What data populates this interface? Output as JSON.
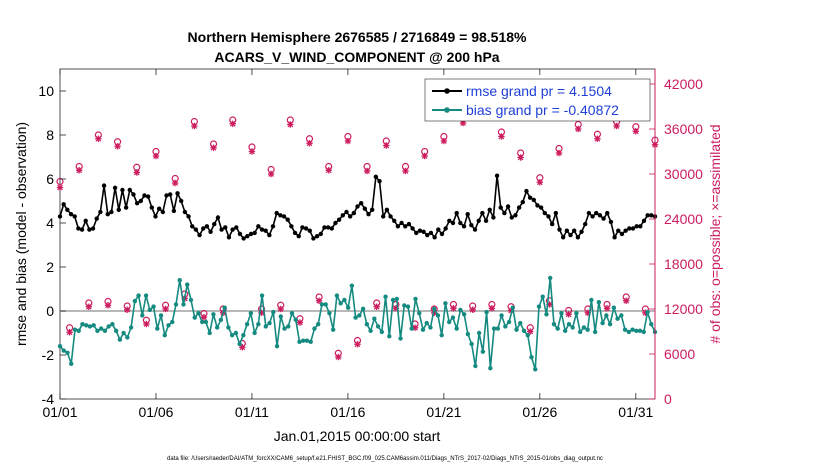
{
  "chart_data": {
    "type": "line",
    "title": "Northern Hemisphere 2676585 / 2716849 = 98.518%",
    "subtitle": "ACARS_V_WIND_COMPONENT @ 200 hPa",
    "xlabel": "Jan.01,2015 00:00:00 start",
    "ylabel": "rmse and bias (model - observation)",
    "ylabel_right": "# of obs: o=possible; ×=assimilated",
    "footer": "data file: /Users/raeder/DAI/ATM_forcXX/CAM6_setup/f.e21.FHIST_BGC.f09_025.CAM6assim.011/Diags_NTrS_2017-02/Diags_NTrS_2015-01/obs_diag_output.nc",
    "xlim": [
      0,
      31
    ],
    "ylim": [
      -4,
      11
    ],
    "ylim_right": [
      0,
      44000
    ],
    "x_tick_values": [
      0,
      5,
      10,
      15,
      20,
      25,
      30
    ],
    "x_tick_labels": [
      "01/01",
      "01/06",
      "01/11",
      "01/16",
      "01/21",
      "01/26",
      "01/31"
    ],
    "y_tick_values": [
      -4,
      -2,
      0,
      2,
      4,
      6,
      8,
      10
    ],
    "y_tick_labels": [
      "-4",
      "-2",
      "0",
      "2",
      "4",
      "6",
      "8",
      "10"
    ],
    "y_right_tick_values": [
      0,
      6000,
      12000,
      18000,
      24000,
      30000,
      36000,
      42000
    ],
    "y_right_tick_labels": [
      "0",
      "6000",
      "12000",
      "18000",
      "24000",
      "30000",
      "36000",
      "42000"
    ],
    "zero_line": 0,
    "legend_position": "top-right",
    "colors": {
      "rmse": "#000000",
      "bias": "#158a80",
      "obs": "#cc1d5e",
      "legend_text": "#1f3fd6",
      "zero_line": "#a0a0a0"
    },
    "series": [
      {
        "name": "rmse grand pr = 4.1504",
        "axis": "left",
        "marker": "dot",
        "values": [
          4.3,
          4.85,
          4.6,
          4.4,
          4.3,
          3.75,
          3.7,
          4.1,
          3.7,
          3.75,
          4.2,
          4.5,
          5.7,
          4.4,
          4.5,
          5.6,
          4.6,
          5.5,
          4.7,
          5.5,
          5.3,
          4.9,
          5.0,
          5.25,
          5.2,
          4.7,
          4.3,
          4.65,
          4.5,
          5.25,
          5.3,
          4.55,
          5.35,
          5.0,
          4.5,
          4.3,
          3.85,
          3.7,
          3.45,
          3.75,
          3.85,
          3.6,
          3.95,
          4.25,
          3.7,
          3.8,
          3.35,
          3.7,
          3.8,
          3.5,
          3.3,
          3.4,
          3.5,
          3.55,
          3.85,
          3.7,
          3.65,
          3.45,
          3.85,
          4.45,
          4.35,
          4.3,
          4.15,
          3.85,
          3.55,
          3.4,
          3.8,
          3.75,
          3.65,
          3.3,
          3.4,
          3.5,
          3.8,
          3.8,
          3.75,
          4.0,
          4.15,
          4.35,
          4.5,
          4.3,
          4.45,
          4.75,
          4.9,
          4.65,
          4.4,
          4.6,
          6.1,
          5.9,
          4.3,
          4.6,
          4.3,
          4.1,
          3.85,
          4.0,
          3.85,
          3.95,
          3.75,
          3.55,
          3.65,
          3.6,
          3.45,
          3.55,
          3.35,
          3.7,
          3.5,
          3.75,
          4.1,
          4.0,
          4.45,
          4.0,
          3.85,
          4.4,
          3.9,
          3.7,
          4.1,
          4.45,
          4.1,
          4.6,
          4.25,
          6.15,
          4.7,
          4.45,
          4.75,
          4.25,
          4.35,
          4.7,
          4.95,
          5.45,
          5.15,
          5.05,
          4.8,
          4.7,
          4.45,
          4.3,
          3.95,
          4.45,
          3.7,
          3.35,
          3.65,
          3.45,
          3.65,
          3.35,
          3.6,
          3.95,
          4.45,
          4.3,
          4.45,
          4.35,
          4.2,
          4.45,
          4.05,
          3.35,
          3.65,
          3.5,
          3.65,
          3.75,
          3.75,
          3.85,
          3.85,
          4.1,
          4.35,
          4.35,
          4.3
        ]
      },
      {
        "name": "bias grand pr = -0.40872",
        "axis": "left",
        "marker": "dot",
        "values": [
          -1.6,
          -1.8,
          -1.9,
          -2.4,
          -0.85,
          -0.9,
          -0.6,
          -0.65,
          -0.7,
          -0.65,
          -0.9,
          -0.8,
          -0.9,
          -0.7,
          -0.6,
          -0.9,
          -1.3,
          -1.0,
          -1.2,
          -0.75,
          0.45,
          0.7,
          -0.2,
          0.7,
          0.05,
          0.2,
          -0.8,
          -0.2,
          -1.1,
          -0.65,
          -0.5,
          0.3,
          1.4,
          0.3,
          1.2,
          0.5,
          -0.3,
          -0.1,
          -0.5,
          -0.5,
          -1.0,
          -0.15,
          -0.75,
          -0.4,
          0.15,
          -0.75,
          -1.1,
          -1.0,
          -1.5,
          -1.1,
          -0.6,
          -0.1,
          -1.0,
          -0.6,
          0.7,
          -0.7,
          -0.55,
          -0.05,
          -1.6,
          -0.25,
          -0.8,
          -0.7,
          -0.1,
          -0.4,
          -1.4,
          -1.35,
          -1.35,
          -1.4,
          -0.8,
          -0.6,
          0.3,
          0.3,
          -0.1,
          -0.85,
          0.7,
          0.35,
          0.5,
          0.15,
          1.15,
          -0.3,
          -0.2,
          0.1,
          -0.6,
          -0.9,
          -0.35,
          -0.7,
          -0.95,
          0.65,
          -1.15,
          0.5,
          0.55,
          -1.25,
          0.25,
          0.2,
          -0.8,
          0.55,
          -0.1,
          -0.85,
          -0.55,
          -0.75,
          0.1,
          -0.2,
          -1.1,
          0.35,
          -0.5,
          -0.3,
          -0.8,
          0.05,
          -0.15,
          -1.05,
          -1.5,
          -2.5,
          -1.0,
          -1.85,
          -0.05,
          -2.6,
          -0.8,
          -0.8,
          -0.2,
          -0.7,
          -0.5,
          0.15,
          -0.85,
          -0.55,
          -0.9,
          -1.1,
          -2.1,
          -2.65,
          0.2,
          0.65,
          -0.15,
          1.5,
          -0.6,
          -0.8,
          -0.1,
          -0.9,
          -0.6,
          -0.75,
          -0.1,
          -0.95,
          -0.75,
          -0.85,
          0.5,
          -0.95,
          0.4,
          -0.55,
          -0.2,
          -0.6,
          0.15,
          -0.35,
          -0.2,
          -0.85,
          -0.95,
          -0.85,
          -0.9,
          -0.9,
          -0.95,
          -0.05,
          -0.6,
          -0.95
        ]
      }
    ],
    "obs_series": [
      {
        "name": "possible",
        "marker": "circle",
        "axis": "right",
        "x": [
          0.0,
          0.5,
          1.0,
          1.5,
          2.0,
          2.5,
          3.0,
          3.5,
          4.0,
          4.5,
          5.0,
          5.5,
          6.0,
          6.5,
          7.0,
          7.5,
          8.0,
          8.5,
          9.0,
          9.5,
          10.0,
          10.5,
          11.0,
          11.5,
          12.0,
          12.5,
          13.0,
          13.5,
          14.0,
          14.5,
          15.0,
          15.5,
          16.0,
          16.5,
          17.0,
          17.5,
          18.0,
          18.5,
          19.0,
          19.5,
          20.0,
          20.5,
          21.0,
          21.5,
          22.0,
          22.5,
          23.0,
          23.5,
          24.0,
          24.5,
          25.0,
          25.5,
          26.0,
          26.5,
          27.0,
          27.5,
          28.0,
          28.5,
          29.0,
          29.5,
          30.0,
          30.5,
          31.0
        ],
        "values": [
          29000,
          9500,
          31000,
          12800,
          35200,
          13000,
          34300,
          12400,
          30900,
          10500,
          33000,
          12500,
          29400,
          14000,
          37000,
          11400,
          34000,
          12000,
          37200,
          7400,
          33600,
          12000,
          30600,
          12500,
          37200,
          10700,
          34700,
          13600,
          31000,
          6100,
          35000,
          7800,
          31000,
          12800,
          34400,
          12600,
          31000,
          10000,
          33000,
          12000,
          35000,
          12600,
          37400,
          12400,
          39000,
          12600,
          35600,
          12300,
          32800,
          9500,
          29500,
          13100,
          33400,
          11800,
          36600,
          12000,
          35300,
          12600,
          37000,
          13600,
          36300,
          12000,
          34500
        ]
      },
      {
        "name": "assimilated",
        "marker": "x",
        "axis": "right",
        "x": [
          0.0,
          0.5,
          1.0,
          1.5,
          2.0,
          2.5,
          3.0,
          3.5,
          4.0,
          4.5,
          5.0,
          5.5,
          6.0,
          6.5,
          7.0,
          7.5,
          8.0,
          8.5,
          9.0,
          9.5,
          10.0,
          10.5,
          11.0,
          11.5,
          12.0,
          12.5,
          13.0,
          13.5,
          14.0,
          14.5,
          15.0,
          15.5,
          16.0,
          16.5,
          17.0,
          17.5,
          18.0,
          18.5,
          19.0,
          19.5,
          20.0,
          20.5,
          21.0,
          21.5,
          22.0,
          22.5,
          23.0,
          23.5,
          24.0,
          24.5,
          25.0,
          25.5,
          26.0,
          26.5,
          27.0,
          27.5,
          28.0,
          28.5,
          29.0,
          29.5,
          30.0,
          30.5,
          31.0
        ],
        "values": [
          28200,
          8900,
          30500,
          12300,
          34700,
          12500,
          33700,
          11900,
          30200,
          10000,
          32400,
          12000,
          28800,
          13400,
          36400,
          10900,
          33500,
          11500,
          36700,
          6900,
          33000,
          11500,
          30000,
          12000,
          36600,
          10200,
          34100,
          13100,
          30500,
          5600,
          34400,
          7300,
          30400,
          12300,
          33800,
          12100,
          30400,
          9500,
          32400,
          11500,
          34400,
          12100,
          36800,
          11900,
          38400,
          12100,
          35000,
          11800,
          32200,
          9000,
          28900,
          12600,
          32800,
          11300,
          36000,
          11500,
          34700,
          12100,
          36400,
          13100,
          35700,
          11500,
          33900
        ]
      }
    ]
  }
}
